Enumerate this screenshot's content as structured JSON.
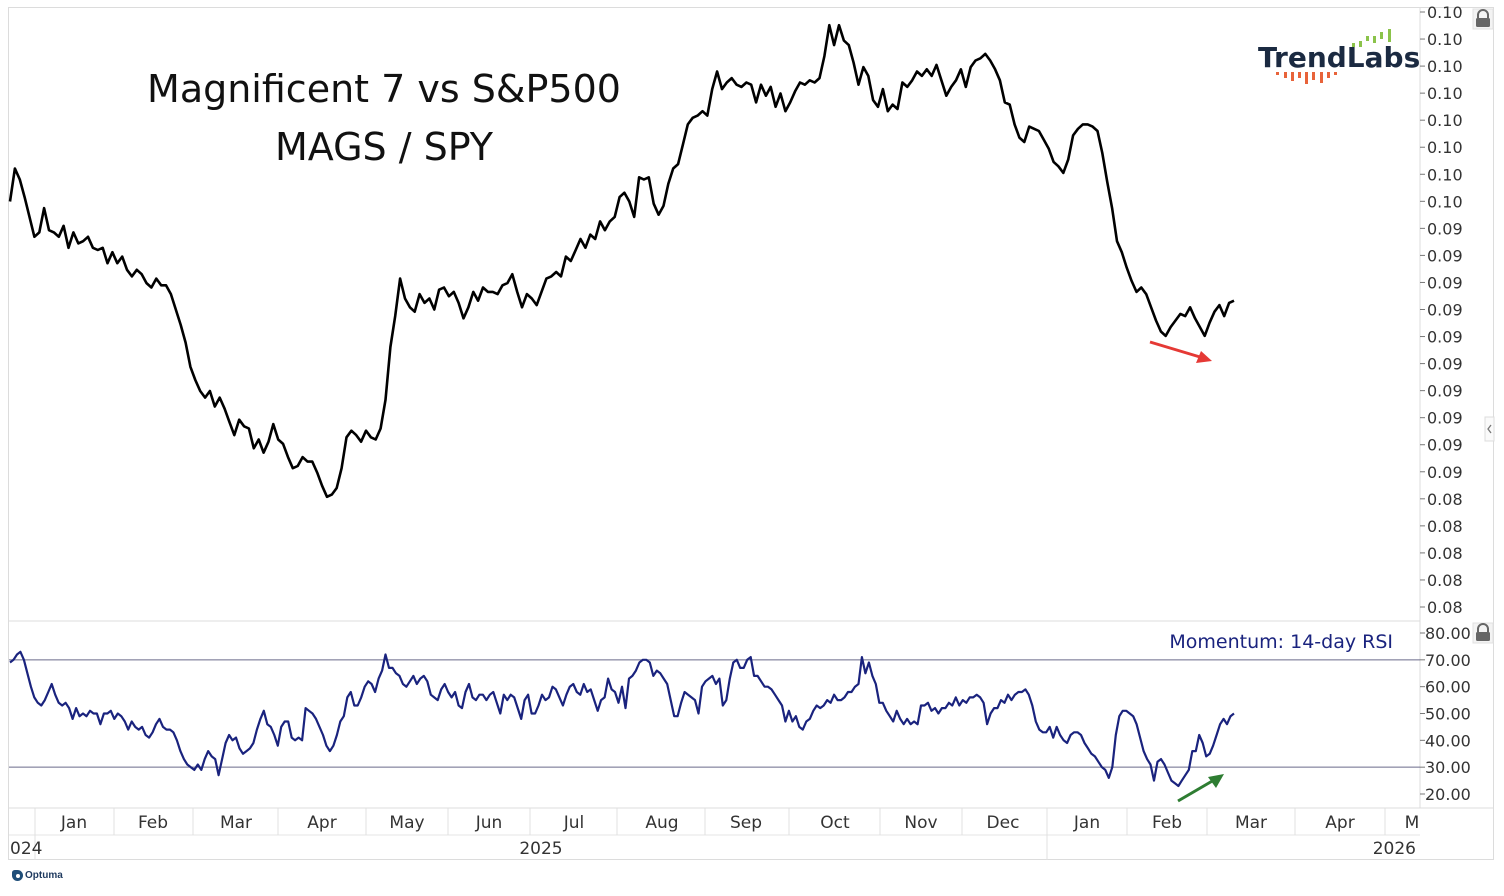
{
  "chart_data": [
    {
      "type": "line",
      "title": "Magnificent 7 vs S&P500",
      "subtitle": "MAGS / SPY",
      "xlabel": "",
      "ylabel": "",
      "y_tick_labels": [
        "0.10",
        "0.10",
        "0.10",
        "0.10",
        "0.10",
        "0.10",
        "0.10",
        "0.10",
        "0.09",
        "0.09",
        "0.09",
        "0.09",
        "0.09",
        "0.09",
        "0.09",
        "0.09",
        "0.09",
        "0.09",
        "0.08",
        "0.08",
        "0.08",
        "0.08",
        "0.08"
      ],
      "ylim": [
        0.0775,
        0.1045
      ],
      "x_tick_labels": [
        "Jan",
        "Feb",
        "Mar",
        "Apr",
        "May",
        "Jun",
        "Jul",
        "Aug",
        "Sep",
        "Oct",
        "Nov",
        "Dec",
        "Jan",
        "Feb",
        "Mar",
        "Apr",
        "M"
      ],
      "year_labels": [
        "024",
        "2025",
        "2026"
      ],
      "grid": false,
      "series": [
        {
          "name": "MAGS / SPY",
          "color": "#000000",
          "x_index_range": [
            0,
            1
          ],
          "values": [
            0.0959,
            0.0974,
            0.0969,
            0.0961,
            0.0952,
            0.0943,
            0.0945,
            0.0956,
            0.0946,
            0.0945,
            0.0943,
            0.0948,
            0.0938,
            0.0945,
            0.094,
            0.0941,
            0.0943,
            0.0938,
            0.0937,
            0.0938,
            0.0931,
            0.0936,
            0.0931,
            0.0934,
            0.0928,
            0.0925,
            0.0928,
            0.0926,
            0.0922,
            0.092,
            0.0924,
            0.0921,
            0.0921,
            0.0917,
            0.091,
            0.0903,
            0.0895,
            0.0884,
            0.0878,
            0.0873,
            0.087,
            0.0873,
            0.0866,
            0.087,
            0.0865,
            0.0859,
            0.0853,
            0.086,
            0.0857,
            0.0856,
            0.0847,
            0.0851,
            0.0845,
            0.085,
            0.0858,
            0.0851,
            0.0849,
            0.0843,
            0.0838,
            0.0839,
            0.0843,
            0.0841,
            0.0841,
            0.0836,
            0.083,
            0.0825,
            0.0826,
            0.0829,
            0.0838,
            0.0852,
            0.0855,
            0.0853,
            0.085,
            0.0855,
            0.0852,
            0.0851,
            0.0856,
            0.0869,
            0.0893,
            0.0907,
            0.0924,
            0.0915,
            0.0911,
            0.0909,
            0.0917,
            0.0913,
            0.0915,
            0.091,
            0.0919,
            0.092,
            0.0916,
            0.0918,
            0.0913,
            0.0906,
            0.0911,
            0.0918,
            0.0914,
            0.092,
            0.0918,
            0.0918,
            0.0917,
            0.0921,
            0.0922,
            0.0926,
            0.0918,
            0.0911,
            0.0917,
            0.0915,
            0.0912,
            0.0918,
            0.0924,
            0.0925,
            0.0927,
            0.0925,
            0.0934,
            0.0932,
            0.0937,
            0.0942,
            0.0938,
            0.0944,
            0.0942,
            0.095,
            0.0946,
            0.095,
            0.0952,
            0.0961,
            0.0963,
            0.0959,
            0.0952,
            0.097,
            0.0969,
            0.097,
            0.0958,
            0.0953,
            0.0957,
            0.0967,
            0.0974,
            0.0976,
            0.0985,
            0.0994,
            0.0997,
            0.0998,
            0.1,
            0.0998,
            0.101,
            0.1018,
            0.101,
            0.1013,
            0.1015,
            0.1012,
            0.1011,
            0.1013,
            0.1012,
            0.1004,
            0.1012,
            0.1007,
            0.1011,
            0.1002,
            0.1008,
            0.1,
            0.1004,
            0.1009,
            0.1013,
            0.1012,
            0.1014,
            0.1013,
            0.1015,
            0.1025,
            0.1039,
            0.103,
            0.1039,
            0.1032,
            0.103,
            0.1022,
            0.1012,
            0.102,
            0.1016,
            0.1005,
            0.1002,
            0.101,
            0.1,
            0.1003,
            0.1001,
            0.1013,
            0.1011,
            0.1014,
            0.1018,
            0.1016,
            0.1019,
            0.1016,
            0.1021,
            0.1014,
            0.1007,
            0.1011,
            0.1014,
            0.1019,
            0.1011,
            0.102,
            0.1023,
            0.1024,
            0.1026,
            0.1023,
            0.1019,
            0.1014,
            0.1004,
            0.1003,
            0.0994,
            0.0988,
            0.0986,
            0.0993,
            0.0992,
            0.0991,
            0.0987,
            0.0983,
            0.0977,
            0.0975,
            0.0972,
            0.0978,
            0.0989,
            0.0992,
            0.0994,
            0.0994,
            0.0993,
            0.0991,
            0.0981,
            0.0968,
            0.0956,
            0.0941,
            0.0936,
            0.0929,
            0.0923,
            0.0918,
            0.092,
            0.0917,
            0.0911,
            0.0905,
            0.09,
            0.0898,
            0.0902,
            0.0905,
            0.0908,
            0.0907,
            0.0911,
            0.0906,
            0.0902,
            0.0898,
            0.0904,
            0.0909,
            0.0912,
            0.0907,
            0.0913,
            0.0914
          ]
        }
      ],
      "annotations": [
        {
          "type": "arrow",
          "color": "#e53935",
          "direction": "down-right",
          "panel": "price"
        },
        {
          "type": "arrow",
          "color": "#2e7d32",
          "direction": "up-right",
          "panel": "rsi"
        }
      ]
    },
    {
      "type": "line",
      "title": "Momentum: 14-day RSI",
      "y_tick_labels": [
        "80.00",
        "70.00",
        "60.00",
        "50.00",
        "40.00",
        "30.00",
        "20.00"
      ],
      "ylim": [
        17,
        80
      ],
      "reference_lines": [
        70,
        30
      ],
      "series": [
        {
          "name": "14-day RSI",
          "color": "#1a237e",
          "values": [
            69,
            70,
            72,
            73,
            70,
            65,
            60,
            56,
            54,
            53,
            55,
            58,
            61,
            57,
            54,
            53,
            54,
            52,
            48,
            52,
            49,
            50,
            49,
            51,
            50,
            50,
            46,
            50,
            50,
            51,
            48,
            50,
            49,
            47,
            44,
            47,
            45,
            44,
            45,
            42,
            41,
            43,
            46,
            48,
            45,
            44,
            44,
            43,
            40,
            36,
            33,
            31,
            30,
            29,
            31,
            29,
            33,
            36,
            34,
            33,
            27,
            33,
            39,
            42,
            40,
            41,
            37,
            35,
            36,
            37,
            39,
            44,
            48,
            51,
            46,
            45,
            42,
            38,
            45,
            47,
            47,
            41,
            40,
            41,
            40,
            52,
            51,
            50,
            48,
            45,
            42,
            38,
            36,
            38,
            42,
            47,
            49,
            56,
            58,
            53,
            53,
            56,
            60,
            62,
            61,
            58,
            63,
            66,
            72,
            67,
            67,
            65,
            64,
            61,
            60,
            62,
            64,
            61,
            63,
            64,
            62,
            57,
            56,
            55,
            59,
            61,
            58,
            56,
            58,
            53,
            52,
            58,
            61,
            56,
            55,
            57,
            57,
            55,
            57,
            58,
            54,
            50,
            57,
            55,
            57,
            56,
            52,
            48,
            55,
            57,
            50,
            50,
            53,
            57,
            55,
            56,
            60,
            59,
            56,
            53,
            57,
            60,
            61,
            58,
            57,
            61,
            58,
            59,
            55,
            51,
            55,
            56,
            63,
            59,
            58,
            54,
            60,
            52,
            63,
            64,
            66,
            69,
            70,
            70,
            69,
            64,
            66,
            65,
            63,
            61,
            55,
            49,
            49,
            54,
            58,
            57,
            56,
            55,
            50,
            60,
            62,
            63,
            64,
            61,
            63,
            53,
            55,
            63,
            69,
            70,
            67,
            67,
            70,
            71,
            64,
            64,
            62,
            60,
            60,
            59,
            57,
            55,
            53,
            47,
            51,
            47,
            49,
            45,
            44,
            47,
            48,
            51,
            53,
            52,
            53,
            55,
            54,
            57,
            55,
            55,
            56,
            58,
            58,
            60,
            61,
            71,
            65,
            69,
            64,
            61,
            54,
            54,
            51,
            49,
            47,
            51,
            48,
            46,
            48,
            46,
            47,
            46,
            53,
            53,
            54,
            51,
            52,
            50,
            52,
            52,
            54,
            53,
            56,
            53,
            55,
            54,
            56,
            56,
            57,
            56,
            54,
            46,
            50,
            52,
            52,
            55,
            54,
            57,
            55,
            57,
            58,
            58,
            59,
            57,
            53,
            47,
            44,
            43,
            43,
            45,
            41,
            45,
            42,
            40,
            39,
            42,
            43,
            43,
            42,
            39,
            37,
            35,
            34,
            32,
            30,
            29,
            26,
            30,
            42,
            49,
            51,
            51,
            50,
            49,
            46,
            41,
            36,
            33,
            31,
            25,
            32,
            33,
            31,
            28,
            25,
            24,
            23,
            25,
            27,
            29,
            36,
            36,
            42,
            39,
            34,
            35,
            38,
            42,
            46,
            48,
            46,
            49,
            50
          ]
        }
      ]
    }
  ],
  "branding": {
    "logo_text": "TrendLabs",
    "logo_text_color": "#1b2a41",
    "logo_bar_colors": [
      "#8bc34a",
      "#e8633a"
    ],
    "footer_brand": "Optuma"
  },
  "icons": {
    "price_panel_lock": "lock-icon",
    "rsi_panel_lock": "lock-icon",
    "collapse_handle": "chevron-left-icon"
  }
}
